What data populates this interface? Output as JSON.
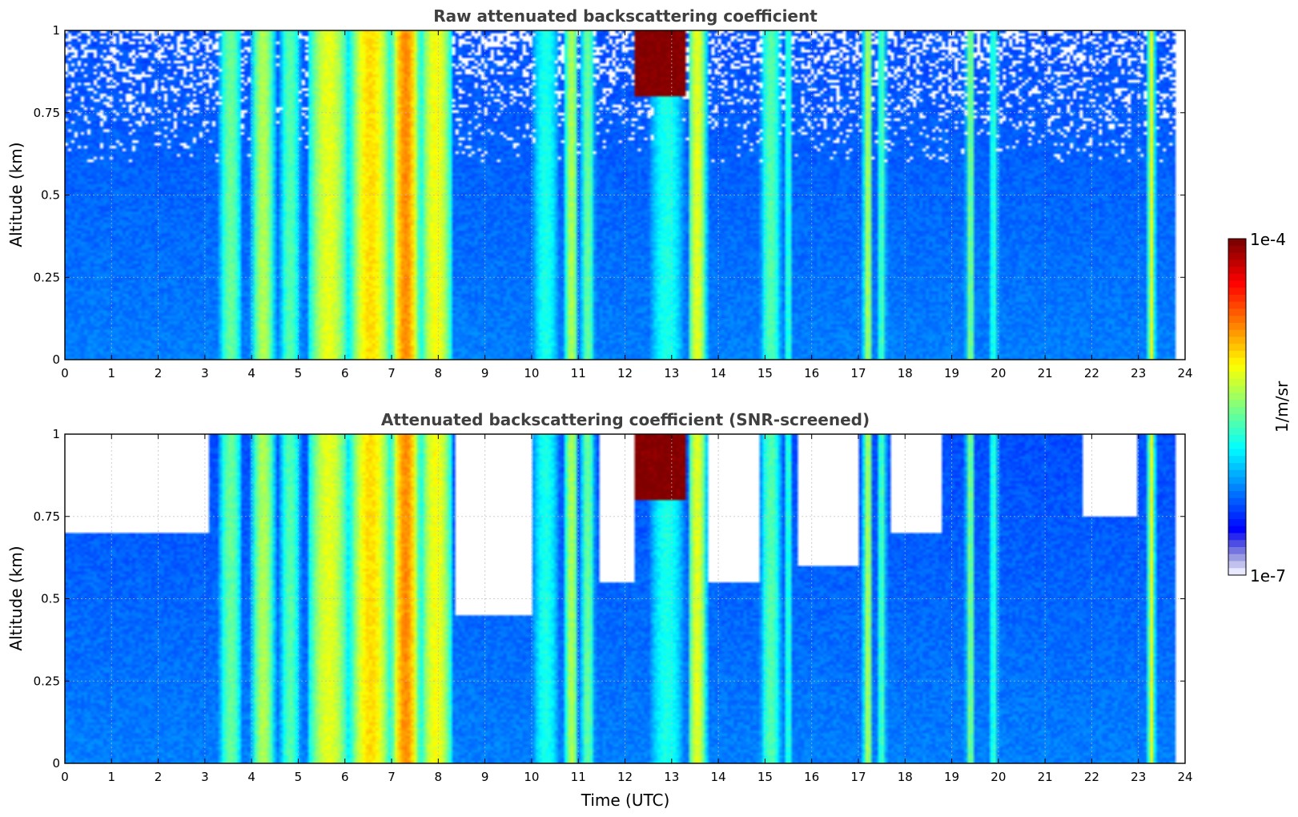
{
  "chart_data": [
    {
      "type": "heatmap",
      "title": "Raw attenuated backscattering coefficient",
      "xlabel": "",
      "ylabel": "Altitude (km)",
      "xlim": [
        0,
        24
      ],
      "ylim": [
        0,
        1
      ],
      "x_ticks": [
        "0",
        "1",
        "2",
        "3",
        "4",
        "5",
        "6",
        "7",
        "8",
        "9",
        "10",
        "11",
        "12",
        "13",
        "14",
        "15",
        "16",
        "17",
        "18",
        "19",
        "20",
        "21",
        "22",
        "23",
        "24"
      ],
      "y_ticks": [
        "0",
        "0.25",
        "0.5",
        "0.75",
        "1"
      ],
      "grid": true,
      "screened": false
    },
    {
      "type": "heatmap",
      "title": "Attenuated backscattering coefficient (SNR-screened)",
      "xlabel": "Time (UTC)",
      "ylabel": "Altitude (km)",
      "xlim": [
        0,
        24
      ],
      "ylim": [
        0,
        1
      ],
      "x_ticks": [
        "0",
        "1",
        "2",
        "3",
        "4",
        "5",
        "6",
        "7",
        "8",
        "9",
        "10",
        "11",
        "12",
        "13",
        "14",
        "15",
        "16",
        "17",
        "18",
        "19",
        "20",
        "21",
        "22",
        "23",
        "24"
      ],
      "y_ticks": [
        "0",
        "0.25",
        "0.5",
        "0.75",
        "1"
      ],
      "grid": true,
      "screened": true
    }
  ],
  "colorbar": {
    "label": "1/m/sr",
    "max_label": "1e-4",
    "min_label": "1e-7",
    "scale": "log",
    "colormap": "jet"
  },
  "field": {
    "data_end_hour": 23.8,
    "background_level": 0.2,
    "features": [
      {
        "x0": 3.3,
        "x1": 3.8,
        "level": 0.48
      },
      {
        "x0": 4.0,
        "x1": 4.5,
        "level": 0.55
      },
      {
        "x0": 4.6,
        "x1": 5.05,
        "level": 0.46
      },
      {
        "x0": 5.2,
        "x1": 6.1,
        "level": 0.6
      },
      {
        "x0": 6.1,
        "x1": 7.0,
        "level": 0.66
      },
      {
        "x0": 7.0,
        "x1": 7.6,
        "level": 0.74
      },
      {
        "x0": 7.6,
        "x1": 8.3,
        "level": 0.62
      },
      {
        "x0": 10.0,
        "x1": 10.6,
        "level": 0.4
      },
      {
        "x0": 10.7,
        "x1": 11.0,
        "level": 0.55
      },
      {
        "x0": 11.05,
        "x1": 11.35,
        "level": 0.48
      },
      {
        "x0": 12.5,
        "x1": 13.3,
        "level": 0.4
      },
      {
        "x0": 13.35,
        "x1": 13.75,
        "level": 0.6
      },
      {
        "x0": 14.9,
        "x1": 15.35,
        "level": 0.46
      },
      {
        "x0": 15.4,
        "x1": 15.6,
        "level": 0.42
      },
      {
        "x0": 17.1,
        "x1": 17.3,
        "level": 0.55
      },
      {
        "x0": 17.4,
        "x1": 17.6,
        "level": 0.45
      },
      {
        "x0": 19.3,
        "x1": 19.5,
        "level": 0.5
      },
      {
        "x0": 19.8,
        "x1": 20.0,
        "level": 0.42
      },
      {
        "x0": 23.2,
        "x1": 23.35,
        "level": 0.62
      }
    ],
    "clouds": [
      {
        "x0": 12.2,
        "x1": 13.3,
        "y0": 0.8,
        "y1": 1.0,
        "level": 1.0
      }
    ],
    "screened_clear_regions": [
      {
        "x0": 0.0,
        "x1": 3.1,
        "y_min": 0.7
      },
      {
        "x0": 8.35,
        "x1": 10.0,
        "y_min": 0.45
      },
      {
        "x0": 11.45,
        "x1": 12.2,
        "y_min": 0.55
      },
      {
        "x0": 13.8,
        "x1": 14.85,
        "y_min": 0.55
      },
      {
        "x0": 15.7,
        "x1": 17.0,
        "y_min": 0.6
      },
      {
        "x0": 17.7,
        "x1": 18.8,
        "y_min": 0.7
      },
      {
        "x0": 21.8,
        "x1": 23.0,
        "y_min": 0.75
      }
    ]
  }
}
